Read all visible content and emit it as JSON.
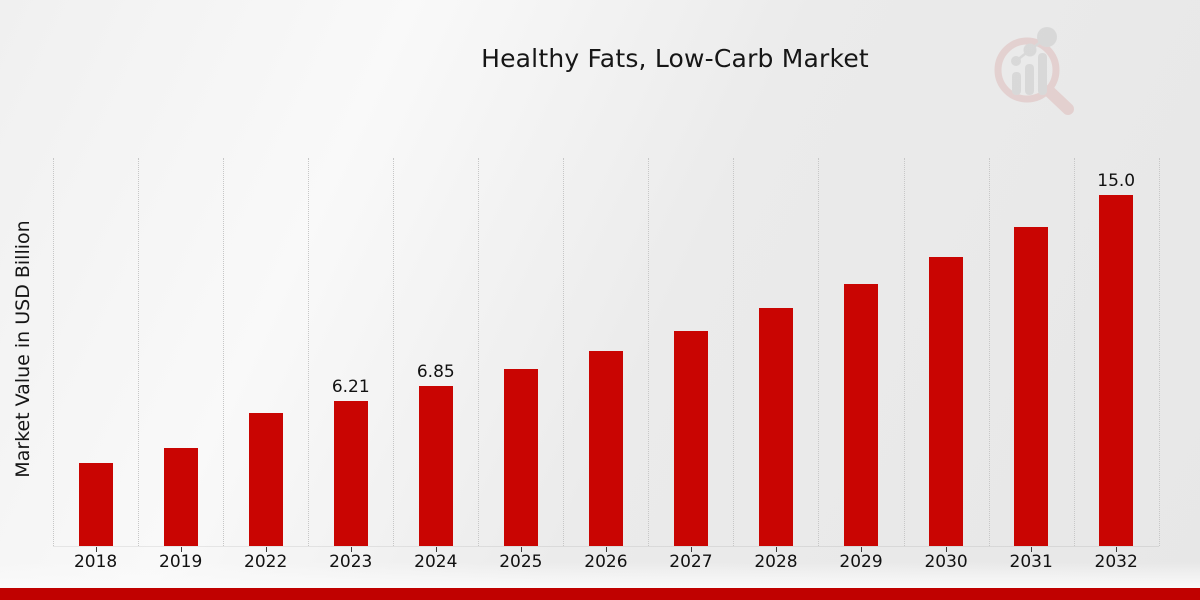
{
  "chart_data": {
    "type": "bar",
    "title": "Healthy Fats, Low-Carb Market",
    "ylabel": "Market Value in USD Billion",
    "xlabel": "",
    "categories": [
      "2018",
      "2019",
      "2022",
      "2023",
      "2024",
      "2025",
      "2026",
      "2027",
      "2028",
      "2029",
      "2030",
      "2031",
      "2032"
    ],
    "values": [
      3.55,
      4.19,
      5.67,
      6.21,
      6.85,
      7.56,
      8.33,
      9.19,
      10.17,
      11.2,
      12.35,
      13.63,
      15.0
    ],
    "bar_labels": [
      "",
      "",
      "",
      "6.21",
      "6.85",
      "",
      "",
      "",
      "",
      "",
      "",
      "",
      "15.0"
    ],
    "ylim": [
      0,
      16.6
    ],
    "grid": "vertical-dotted",
    "legend": "none",
    "bar_color": "#c90502",
    "footer_color": "#c00100",
    "logo_ring_color": "#dcb3b1",
    "logo_bar_color": "#c5c5c5"
  }
}
